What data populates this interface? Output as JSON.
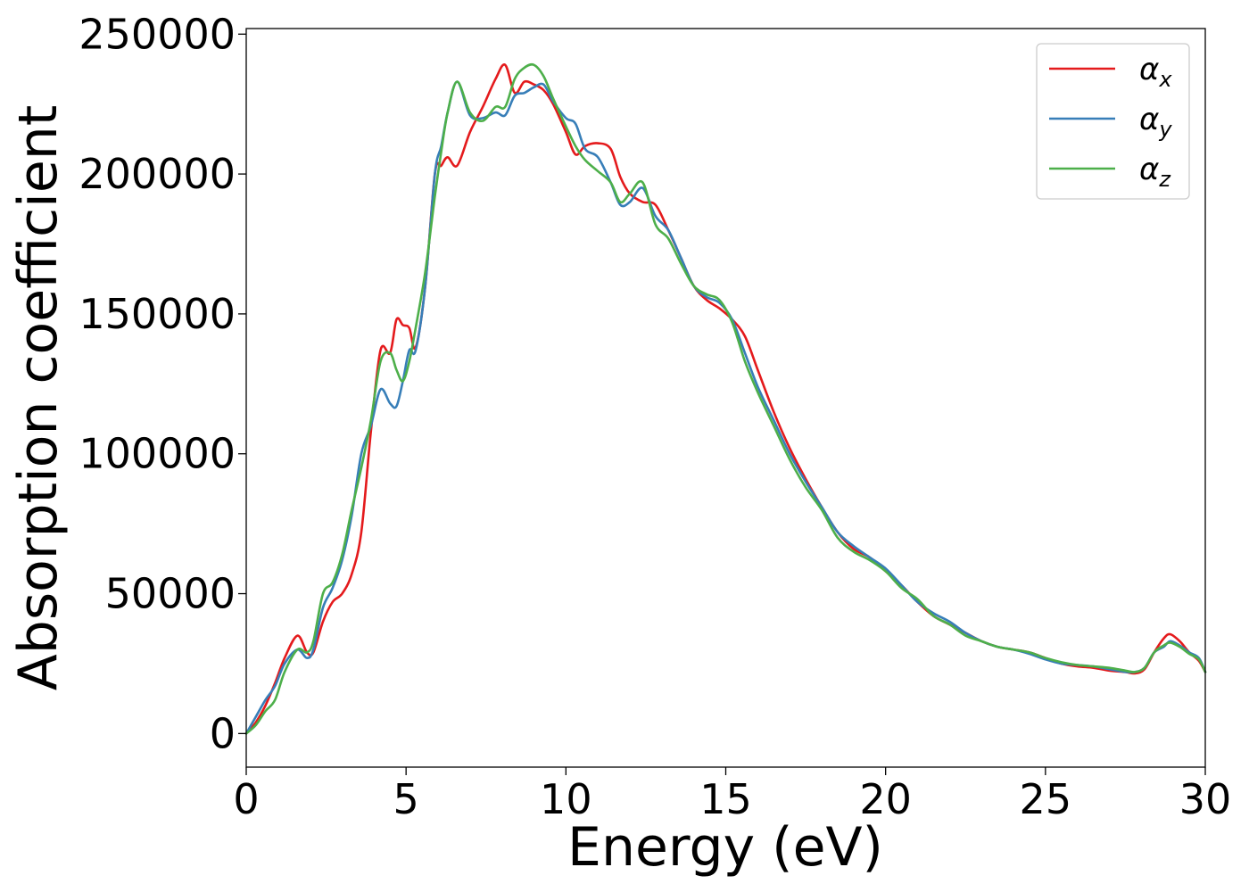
{
  "chart_data": {
    "type": "line",
    "xlabel": "Energy (eV)",
    "ylabel": "Absorption coefficient",
    "xlim": [
      0,
      30
    ],
    "ylim": [
      -12000,
      252000
    ],
    "xticks": [
      0,
      5,
      10,
      15,
      20,
      25,
      30
    ],
    "xtick_labels": [
      "0",
      "5",
      "10",
      "15",
      "20",
      "25",
      "30"
    ],
    "yticks": [
      0,
      50000,
      100000,
      150000,
      200000,
      250000
    ],
    "ytick_labels": [
      "0",
      "50000",
      "100000",
      "150000",
      "200000",
      "250000"
    ],
    "grid": false,
    "legend_position": "top-right",
    "series": [
      {
        "name": "α_x",
        "label_base": "α",
        "label_sub": "x",
        "color": "#e41a1c",
        "x": [
          0,
          0.3,
          0.6,
          0.9,
          1.2,
          1.6,
          1.9,
          2.1,
          2.4,
          2.7,
          3.0,
          3.3,
          3.6,
          3.9,
          4.2,
          4.5,
          4.7,
          4.9,
          5.1,
          5.3,
          5.6,
          5.9,
          6.1,
          6.3,
          6.6,
          7.0,
          7.4,
          7.8,
          8.1,
          8.4,
          8.7,
          9.0,
          9.3,
          9.6,
          10.0,
          10.3,
          10.6,
          11.0,
          11.4,
          11.7,
          12.0,
          12.4,
          12.8,
          13.2,
          13.6,
          14.0,
          14.4,
          14.8,
          15.2,
          15.6,
          16.0,
          16.5,
          17.0,
          17.5,
          18.0,
          18.5,
          19.0,
          19.5,
          20.0,
          20.5,
          21.0,
          21.5,
          22.0,
          22.5,
          23.0,
          23.5,
          24.0,
          24.5,
          25.0,
          25.5,
          26.0,
          26.5,
          27.0,
          27.5,
          27.8,
          28.1,
          28.4,
          28.7,
          28.9,
          29.2,
          29.5,
          29.8,
          30.0
        ],
        "y": [
          0,
          4000,
          10000,
          18000,
          27000,
          35000,
          29000,
          29000,
          40000,
          47000,
          50000,
          57000,
          72000,
          108000,
          137000,
          136000,
          148000,
          146000,
          145000,
          138000,
          160000,
          200000,
          203000,
          206000,
          203000,
          215000,
          224000,
          234000,
          239000,
          229000,
          233000,
          232000,
          230000,
          225000,
          215000,
          207000,
          210000,
          211000,
          209000,
          199000,
          193000,
          190000,
          189000,
          180000,
          170000,
          160000,
          155000,
          152000,
          148000,
          142000,
          130000,
          115000,
          102000,
          91000,
          81000,
          72000,
          66000,
          63000,
          58000,
          53000,
          47000,
          42000,
          39000,
          36000,
          33000,
          31000,
          30000,
          29000,
          27000,
          25000,
          24000,
          23500,
          22500,
          22000,
          21500,
          23000,
          29000,
          34000,
          35500,
          33000,
          29000,
          26000,
          22000
        ]
      },
      {
        "name": "α_y",
        "label_base": "α",
        "label_sub": "y",
        "color": "#377eb8",
        "x": [
          0,
          0.3,
          0.6,
          0.9,
          1.2,
          1.6,
          1.9,
          2.1,
          2.4,
          2.7,
          3.0,
          3.3,
          3.6,
          3.9,
          4.2,
          4.5,
          4.7,
          4.9,
          5.1,
          5.3,
          5.6,
          5.9,
          6.1,
          6.3,
          6.6,
          7.0,
          7.4,
          7.8,
          8.1,
          8.4,
          8.7,
          9.0,
          9.3,
          9.6,
          10.0,
          10.3,
          10.6,
          11.0,
          11.4,
          11.7,
          12.0,
          12.4,
          12.8,
          13.2,
          13.6,
          14.0,
          14.4,
          14.8,
          15.2,
          15.6,
          16.0,
          16.5,
          17.0,
          17.5,
          18.0,
          18.5,
          19.0,
          19.5,
          20.0,
          20.5,
          21.0,
          21.5,
          22.0,
          22.5,
          23.0,
          23.5,
          24.0,
          24.5,
          25.0,
          25.5,
          26.0,
          26.5,
          27.0,
          27.5,
          27.8,
          28.1,
          28.4,
          28.7,
          28.9,
          29.2,
          29.5,
          29.8,
          30.0
        ],
        "y": [
          0,
          6000,
          12000,
          17000,
          25000,
          30000,
          27000,
          30000,
          45000,
          52000,
          62000,
          78000,
          100000,
          110000,
          123000,
          118000,
          117000,
          126000,
          137000,
          137000,
          160000,
          200000,
          210000,
          222000,
          233000,
          221000,
          220000,
          222000,
          221000,
          228000,
          229000,
          231000,
          232000,
          226000,
          220000,
          218000,
          209000,
          206000,
          197000,
          189000,
          190000,
          195000,
          185000,
          180000,
          170000,
          160000,
          156000,
          154000,
          148000,
          136000,
          124000,
          112000,
          100000,
          90000,
          81000,
          72000,
          67000,
          63000,
          59000,
          53000,
          47000,
          43000,
          40000,
          36000,
          33000,
          31000,
          30000,
          28500,
          26500,
          25000,
          24500,
          24000,
          23000,
          22000,
          22000,
          23500,
          29000,
          31000,
          33000,
          31500,
          29000,
          27000,
          22000
        ]
      },
      {
        "name": "α_z",
        "label_base": "α",
        "label_sub": "z",
        "color": "#4daf4a",
        "x": [
          0,
          0.3,
          0.6,
          0.9,
          1.2,
          1.6,
          1.9,
          2.1,
          2.4,
          2.7,
          3.0,
          3.3,
          3.6,
          3.9,
          4.2,
          4.5,
          4.7,
          4.9,
          5.1,
          5.3,
          5.6,
          5.9,
          6.1,
          6.3,
          6.6,
          7.0,
          7.4,
          7.8,
          8.1,
          8.4,
          8.7,
          9.0,
          9.3,
          9.6,
          10.0,
          10.3,
          10.6,
          11.0,
          11.4,
          11.7,
          12.0,
          12.4,
          12.8,
          13.2,
          13.6,
          14.0,
          14.4,
          14.8,
          15.2,
          15.6,
          16.0,
          16.5,
          17.0,
          17.5,
          18.0,
          18.5,
          19.0,
          19.5,
          20.0,
          20.5,
          21.0,
          21.5,
          22.0,
          22.5,
          23.0,
          23.5,
          24.0,
          24.5,
          25.0,
          25.5,
          26.0,
          26.5,
          27.0,
          27.5,
          27.8,
          28.1,
          28.4,
          28.7,
          28.9,
          29.2,
          29.5,
          29.8,
          30.0
        ],
        "y": [
          0,
          3000,
          8000,
          12000,
          22000,
          30000,
          29000,
          33000,
          50000,
          54000,
          64000,
          80000,
          95000,
          112000,
          133000,
          136000,
          130000,
          126000,
          133000,
          145000,
          165000,
          192000,
          208000,
          222000,
          233000,
          222000,
          219000,
          224000,
          224000,
          234000,
          238000,
          239000,
          235000,
          227000,
          217000,
          210000,
          205000,
          201000,
          197000,
          190000,
          193000,
          197000,
          182000,
          177000,
          168000,
          160000,
          157000,
          155000,
          147000,
          133000,
          122000,
          110000,
          98000,
          88000,
          80000,
          70000,
          65000,
          62000,
          58000,
          52000,
          48000,
          42000,
          39000,
          35000,
          33000,
          31000,
          30000,
          29000,
          27000,
          25500,
          24500,
          24000,
          23500,
          22500,
          22000,
          23500,
          29000,
          31500,
          32500,
          31000,
          28500,
          26500,
          22000
        ]
      }
    ]
  }
}
